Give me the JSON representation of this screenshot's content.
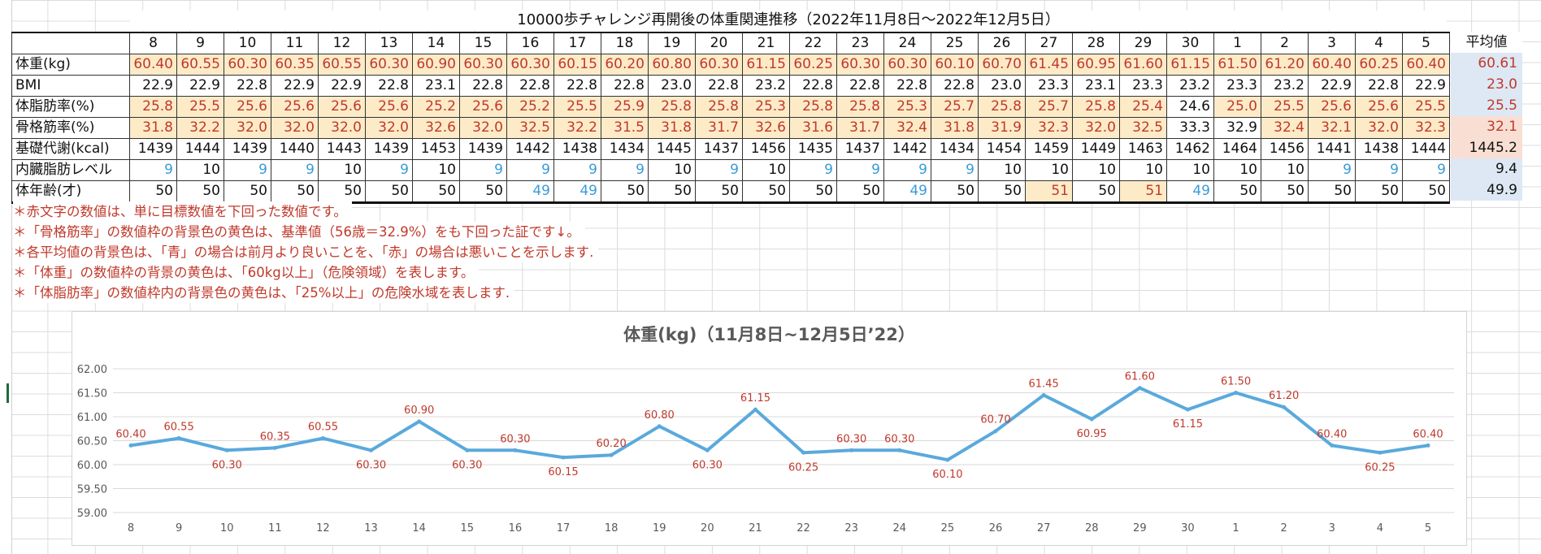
{
  "sheet": {
    "title": "10000歩チャレンジ再開後の体重関連推移（2022年11月8日～2022年12月5日）",
    "avg_header": "平均値",
    "days": [
      "8",
      "9",
      "10",
      "11",
      "12",
      "13",
      "14",
      "15",
      "16",
      "17",
      "18",
      "19",
      "20",
      "21",
      "22",
      "23",
      "24",
      "25",
      "26",
      "27",
      "28",
      "29",
      "30",
      "1",
      "2",
      "3",
      "4",
      "5"
    ],
    "rows": [
      {
        "label": "体重(kg)",
        "values": [
          "60.40",
          "60.55",
          "60.30",
          "60.35",
          "60.55",
          "60.30",
          "60.90",
          "60.30",
          "60.30",
          "60.15",
          "60.20",
          "60.80",
          "60.30",
          "61.15",
          "60.25",
          "60.30",
          "60.30",
          "60.10",
          "60.70",
          "61.45",
          "60.95",
          "61.60",
          "61.15",
          "61.50",
          "61.20",
          "60.40",
          "60.25",
          "60.40"
        ],
        "avg": "60.61",
        "avg_style": "blue",
        "avg_color": "red"
      },
      {
        "label": "BMI",
        "values": [
          "22.9",
          "22.9",
          "22.8",
          "22.9",
          "22.9",
          "22.8",
          "23.1",
          "22.8",
          "22.8",
          "22.8",
          "22.8",
          "23.0",
          "22.8",
          "23.2",
          "22.8",
          "22.8",
          "22.8",
          "22.8",
          "23.0",
          "23.3",
          "23.1",
          "23.3",
          "23.2",
          "23.3",
          "23.2",
          "22.9",
          "22.8",
          "22.9"
        ],
        "avg": "23.0",
        "avg_style": "blue",
        "avg_color": "red"
      },
      {
        "label": "体脂肪率(%)",
        "values": [
          "25.8",
          "25.5",
          "25.6",
          "25.6",
          "25.6",
          "25.6",
          "25.2",
          "25.6",
          "25.2",
          "25.5",
          "25.9",
          "25.8",
          "25.8",
          "25.3",
          "25.8",
          "25.8",
          "25.3",
          "25.7",
          "25.8",
          "25.7",
          "25.8",
          "25.4",
          "24.6",
          "25.0",
          "25.5",
          "25.6",
          "25.6",
          "25.5"
        ],
        "avg": "25.5",
        "avg_style": "blue",
        "avg_color": "red"
      },
      {
        "label": "骨格筋率(%)",
        "values": [
          "31.8",
          "32.2",
          "32.0",
          "32.0",
          "32.0",
          "32.0",
          "32.6",
          "32.0",
          "32.5",
          "32.2",
          "31.5",
          "31.8",
          "31.7",
          "32.6",
          "31.6",
          "31.7",
          "32.4",
          "31.8",
          "31.9",
          "32.3",
          "32.0",
          "32.5",
          "33.3",
          "32.9",
          "32.4",
          "32.1",
          "32.0",
          "32.3"
        ],
        "avg": "32.1",
        "avg_style": "red",
        "avg_color": "red"
      },
      {
        "label": "基礎代謝(kcal)",
        "values": [
          "1439",
          "1444",
          "1439",
          "1440",
          "1443",
          "1439",
          "1453",
          "1439",
          "1442",
          "1438",
          "1434",
          "1445",
          "1437",
          "1456",
          "1435",
          "1437",
          "1442",
          "1434",
          "1454",
          "1459",
          "1449",
          "1463",
          "1462",
          "1464",
          "1456",
          "1441",
          "1438",
          "1444"
        ],
        "avg": "1445.2",
        "avg_style": "red",
        "avg_color": "black"
      },
      {
        "label": "内臓脂肪レベル",
        "values": [
          "9",
          "10",
          "9",
          "9",
          "10",
          "9",
          "10",
          "9",
          "9",
          "9",
          "9",
          "10",
          "9",
          "10",
          "9",
          "9",
          "9",
          "9",
          "10",
          "10",
          "10",
          "10",
          "10",
          "10",
          "10",
          "9",
          "9",
          "9"
        ],
        "avg": "9.4",
        "avg_style": "blue",
        "avg_color": "black"
      },
      {
        "label": "体年齢(才)",
        "values": [
          "50",
          "50",
          "50",
          "50",
          "50",
          "50",
          "50",
          "50",
          "49",
          "49",
          "50",
          "50",
          "50",
          "50",
          "50",
          "50",
          "49",
          "50",
          "50",
          "51",
          "50",
          "51",
          "49",
          "50",
          "50",
          "50",
          "50",
          "50"
        ],
        "avg": "49.9",
        "avg_style": "blue",
        "avg_color": "black"
      }
    ],
    "notes": [
      "＊赤文字の数値は、単に目標数値を下回った数値です。",
      "＊「骨格筋率」の数値枠の背景色の黄色は、基準値（56歳＝32.9%）をも下回った証です↓。",
      "＊各平均値の背景色は、「青」の場合は前月より良いことを、「赤」の場合は悪いことを示します.",
      "＊「体重」の数値枠の背景の黄色は、「60kg以上」（危険領域）を表します。",
      "＊「体脂肪率」の数値枠内の背景色の黄色は、「25%以上」の危険水域を表します."
    ],
    "colors": {
      "red_text": "#c0392b",
      "blue_text": "#3a9bd9",
      "highlight": "#fdebc8",
      "avg_blue_bg": "#dde8f4",
      "avg_red_bg": "#f9dfd3"
    }
  },
  "chart_data": {
    "type": "line",
    "title": "体重(kg)（11月8日~12月5日’22）",
    "categories": [
      "8",
      "9",
      "10",
      "11",
      "12",
      "13",
      "14",
      "15",
      "16",
      "17",
      "18",
      "19",
      "20",
      "21",
      "22",
      "23",
      "24",
      "25",
      "26",
      "27",
      "28",
      "29",
      "30",
      "1",
      "2",
      "3",
      "4",
      "5"
    ],
    "series": [
      {
        "values": [
          60.4,
          60.55,
          60.3,
          60.35,
          60.55,
          60.3,
          60.9,
          60.3,
          60.3,
          60.15,
          60.2,
          60.8,
          60.3,
          61.15,
          60.25,
          60.3,
          60.3,
          60.1,
          60.7,
          61.45,
          60.95,
          61.6,
          61.15,
          61.5,
          61.2,
          60.4,
          60.25,
          60.4
        ],
        "labels": [
          "60.40",
          "60.55",
          "60.30",
          "60.35",
          "60.55",
          "60.30",
          "60.90",
          "60.30",
          "60.30",
          "60.15",
          "60.20",
          "60.80",
          "60.30",
          "61.15",
          "60.25",
          "60.30",
          "60.30",
          "60.10",
          "60.70",
          "61.45",
          "60.95",
          "61.60",
          "61.15",
          "61.50",
          "61.20",
          "60.40",
          "60.25",
          "60.40"
        ],
        "color": "#5aa9dc"
      }
    ],
    "ylim": [
      59.0,
      62.0
    ],
    "yticks": [
      "59.00",
      "59.50",
      "60.00",
      "60.50",
      "61.00",
      "61.50",
      "62.00"
    ],
    "grid": true,
    "label_color": "#c0392b"
  }
}
